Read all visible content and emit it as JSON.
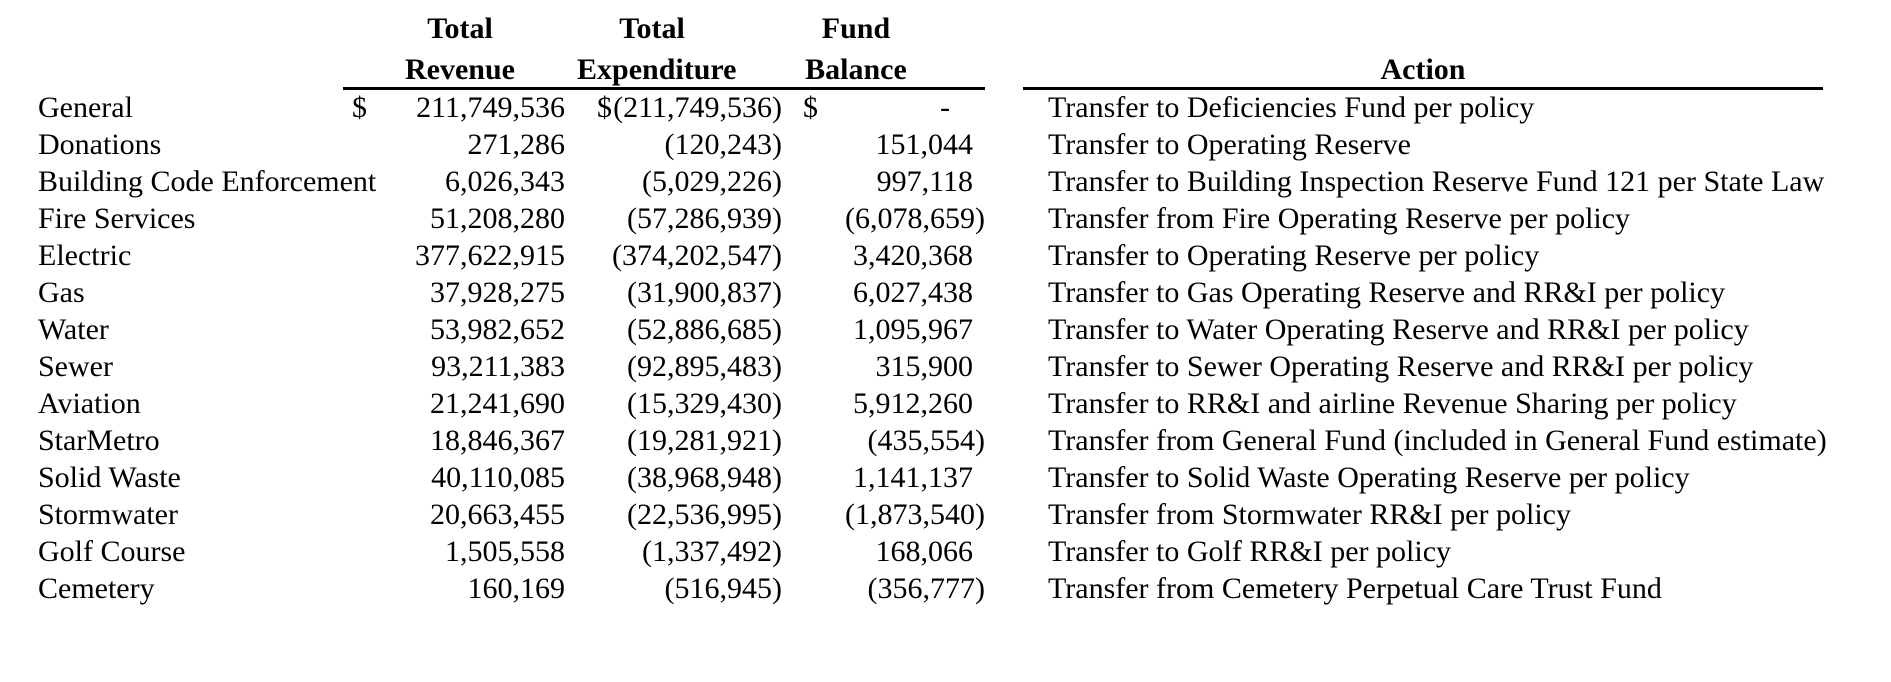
{
  "colors": {
    "background": "#ffffff",
    "text": "#000000",
    "rule": "#000000"
  },
  "table": {
    "currency_symbol": "$",
    "headers": {
      "revenue_line1": "Total",
      "revenue_line2": "Revenue",
      "expenditure_line1": "Total",
      "expenditure_line2": "Expenditure",
      "balance_line1": "Fund",
      "balance_line2": "Balance",
      "action": "Action"
    },
    "rows": [
      {
        "fund": "General",
        "currency": true,
        "revenue": "211,749,536",
        "expenditure": "(211,749,536)",
        "balance": "-",
        "action": "Transfer to Deficiencies Fund per policy"
      },
      {
        "fund": "Donations",
        "currency": false,
        "revenue": "271,286",
        "expenditure": "(120,243)",
        "balance": "151,044",
        "action": "Transfer to Operating Reserve"
      },
      {
        "fund": "Building Code Enforcement",
        "currency": false,
        "revenue": "6,026,343",
        "expenditure": "(5,029,226)",
        "balance": "997,118",
        "action": "Transfer to Building Inspection Reserve Fund 121 per State Law"
      },
      {
        "fund": "Fire Services",
        "currency": false,
        "revenue": "51,208,280",
        "expenditure": "(57,286,939)",
        "balance": "(6,078,659)",
        "action": "Transfer from Fire Operating Reserve per policy"
      },
      {
        "fund": "Electric",
        "currency": false,
        "revenue": "377,622,915",
        "expenditure": "(374,202,547)",
        "balance": "3,420,368",
        "action": "Transfer to Operating Reserve per policy"
      },
      {
        "fund": "Gas",
        "currency": false,
        "revenue": "37,928,275",
        "expenditure": "(31,900,837)",
        "balance": "6,027,438",
        "action": "Transfer to Gas Operating Reserve and RR&I per policy"
      },
      {
        "fund": "Water",
        "currency": false,
        "revenue": "53,982,652",
        "expenditure": "(52,886,685)",
        "balance": "1,095,967",
        "action": "Transfer to Water Operating Reserve and RR&I per policy"
      },
      {
        "fund": "Sewer",
        "currency": false,
        "revenue": "93,211,383",
        "expenditure": "(92,895,483)",
        "balance": "315,900",
        "action": "Transfer to Sewer Operating Reserve and RR&I per policy"
      },
      {
        "fund": "Aviation",
        "currency": false,
        "revenue": "21,241,690",
        "expenditure": "(15,329,430)",
        "balance": "5,912,260",
        "action": "Transfer to RR&I and airline Revenue Sharing per policy"
      },
      {
        "fund": "StarMetro",
        "currency": false,
        "revenue": "18,846,367",
        "expenditure": "(19,281,921)",
        "balance": "(435,554)",
        "action": "Transfer from General Fund (included in General Fund estimate)"
      },
      {
        "fund": "Solid Waste",
        "currency": false,
        "revenue": "40,110,085",
        "expenditure": "(38,968,948)",
        "balance": "1,141,137",
        "action": "Transfer to Solid Waste Operating Reserve per policy"
      },
      {
        "fund": "Stormwater",
        "currency": false,
        "revenue": "20,663,455",
        "expenditure": "(22,536,995)",
        "balance": "(1,873,540)",
        "action": "Transfer from Stormwater RR&I per policy"
      },
      {
        "fund": "Golf Course",
        "currency": false,
        "revenue": "1,505,558",
        "expenditure": "(1,337,492)",
        "balance": "168,066",
        "action": "Transfer to Golf RR&I per policy"
      },
      {
        "fund": "Cemetery",
        "currency": false,
        "revenue": "160,169",
        "expenditure": "(516,945)",
        "balance": "(356,777)",
        "action": "Transfer from Cemetery Perpetual Care Trust Fund"
      }
    ]
  }
}
